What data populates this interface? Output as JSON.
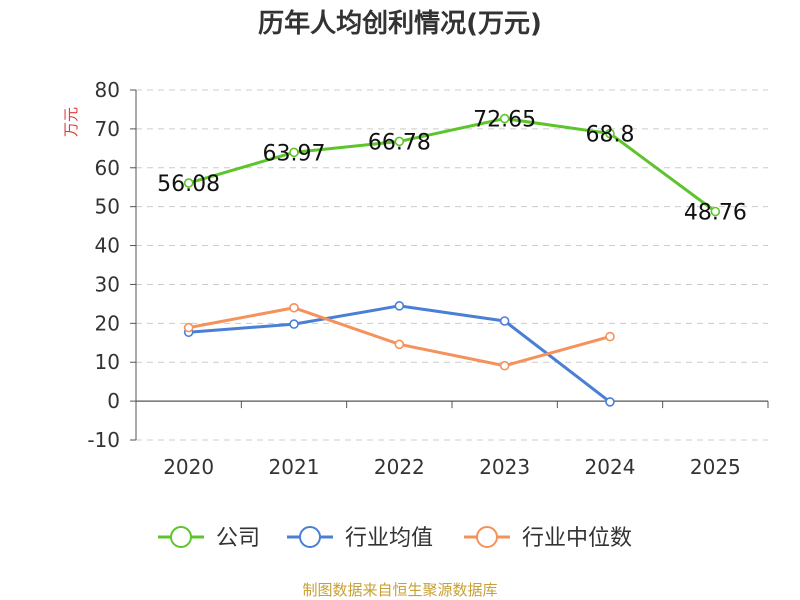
{
  "chart_data": {
    "type": "line",
    "title": "历年人均创利情况(万元)",
    "y_unit": "万元",
    "categories": [
      "2020",
      "2021",
      "2022",
      "2023",
      "2024",
      "2025"
    ],
    "ylim": [
      -10,
      80
    ],
    "yticks": [
      80,
      70,
      60,
      50,
      40,
      30,
      20,
      10,
      0,
      -10
    ],
    "grid": true,
    "legend_position": "bottom",
    "series": [
      {
        "name": "公司",
        "color": "#5dc42c",
        "values": [
          56.08,
          63.97,
          66.78,
          72.65,
          68.8,
          48.76
        ],
        "labels": [
          "56.08",
          "63.97",
          "66.78",
          "72.65",
          "68.8",
          "48.76"
        ]
      },
      {
        "name": "行业均值",
        "color": "#4a7fd6",
        "values": [
          17.7,
          19.8,
          24.5,
          20.6,
          -0.2,
          null
        ]
      },
      {
        "name": "行业中位数",
        "color": "#f5915a",
        "values": [
          18.9,
          24.0,
          14.6,
          9.1,
          16.6,
          null
        ]
      }
    ],
    "source": "制图数据来自恒生聚源数据库"
  }
}
